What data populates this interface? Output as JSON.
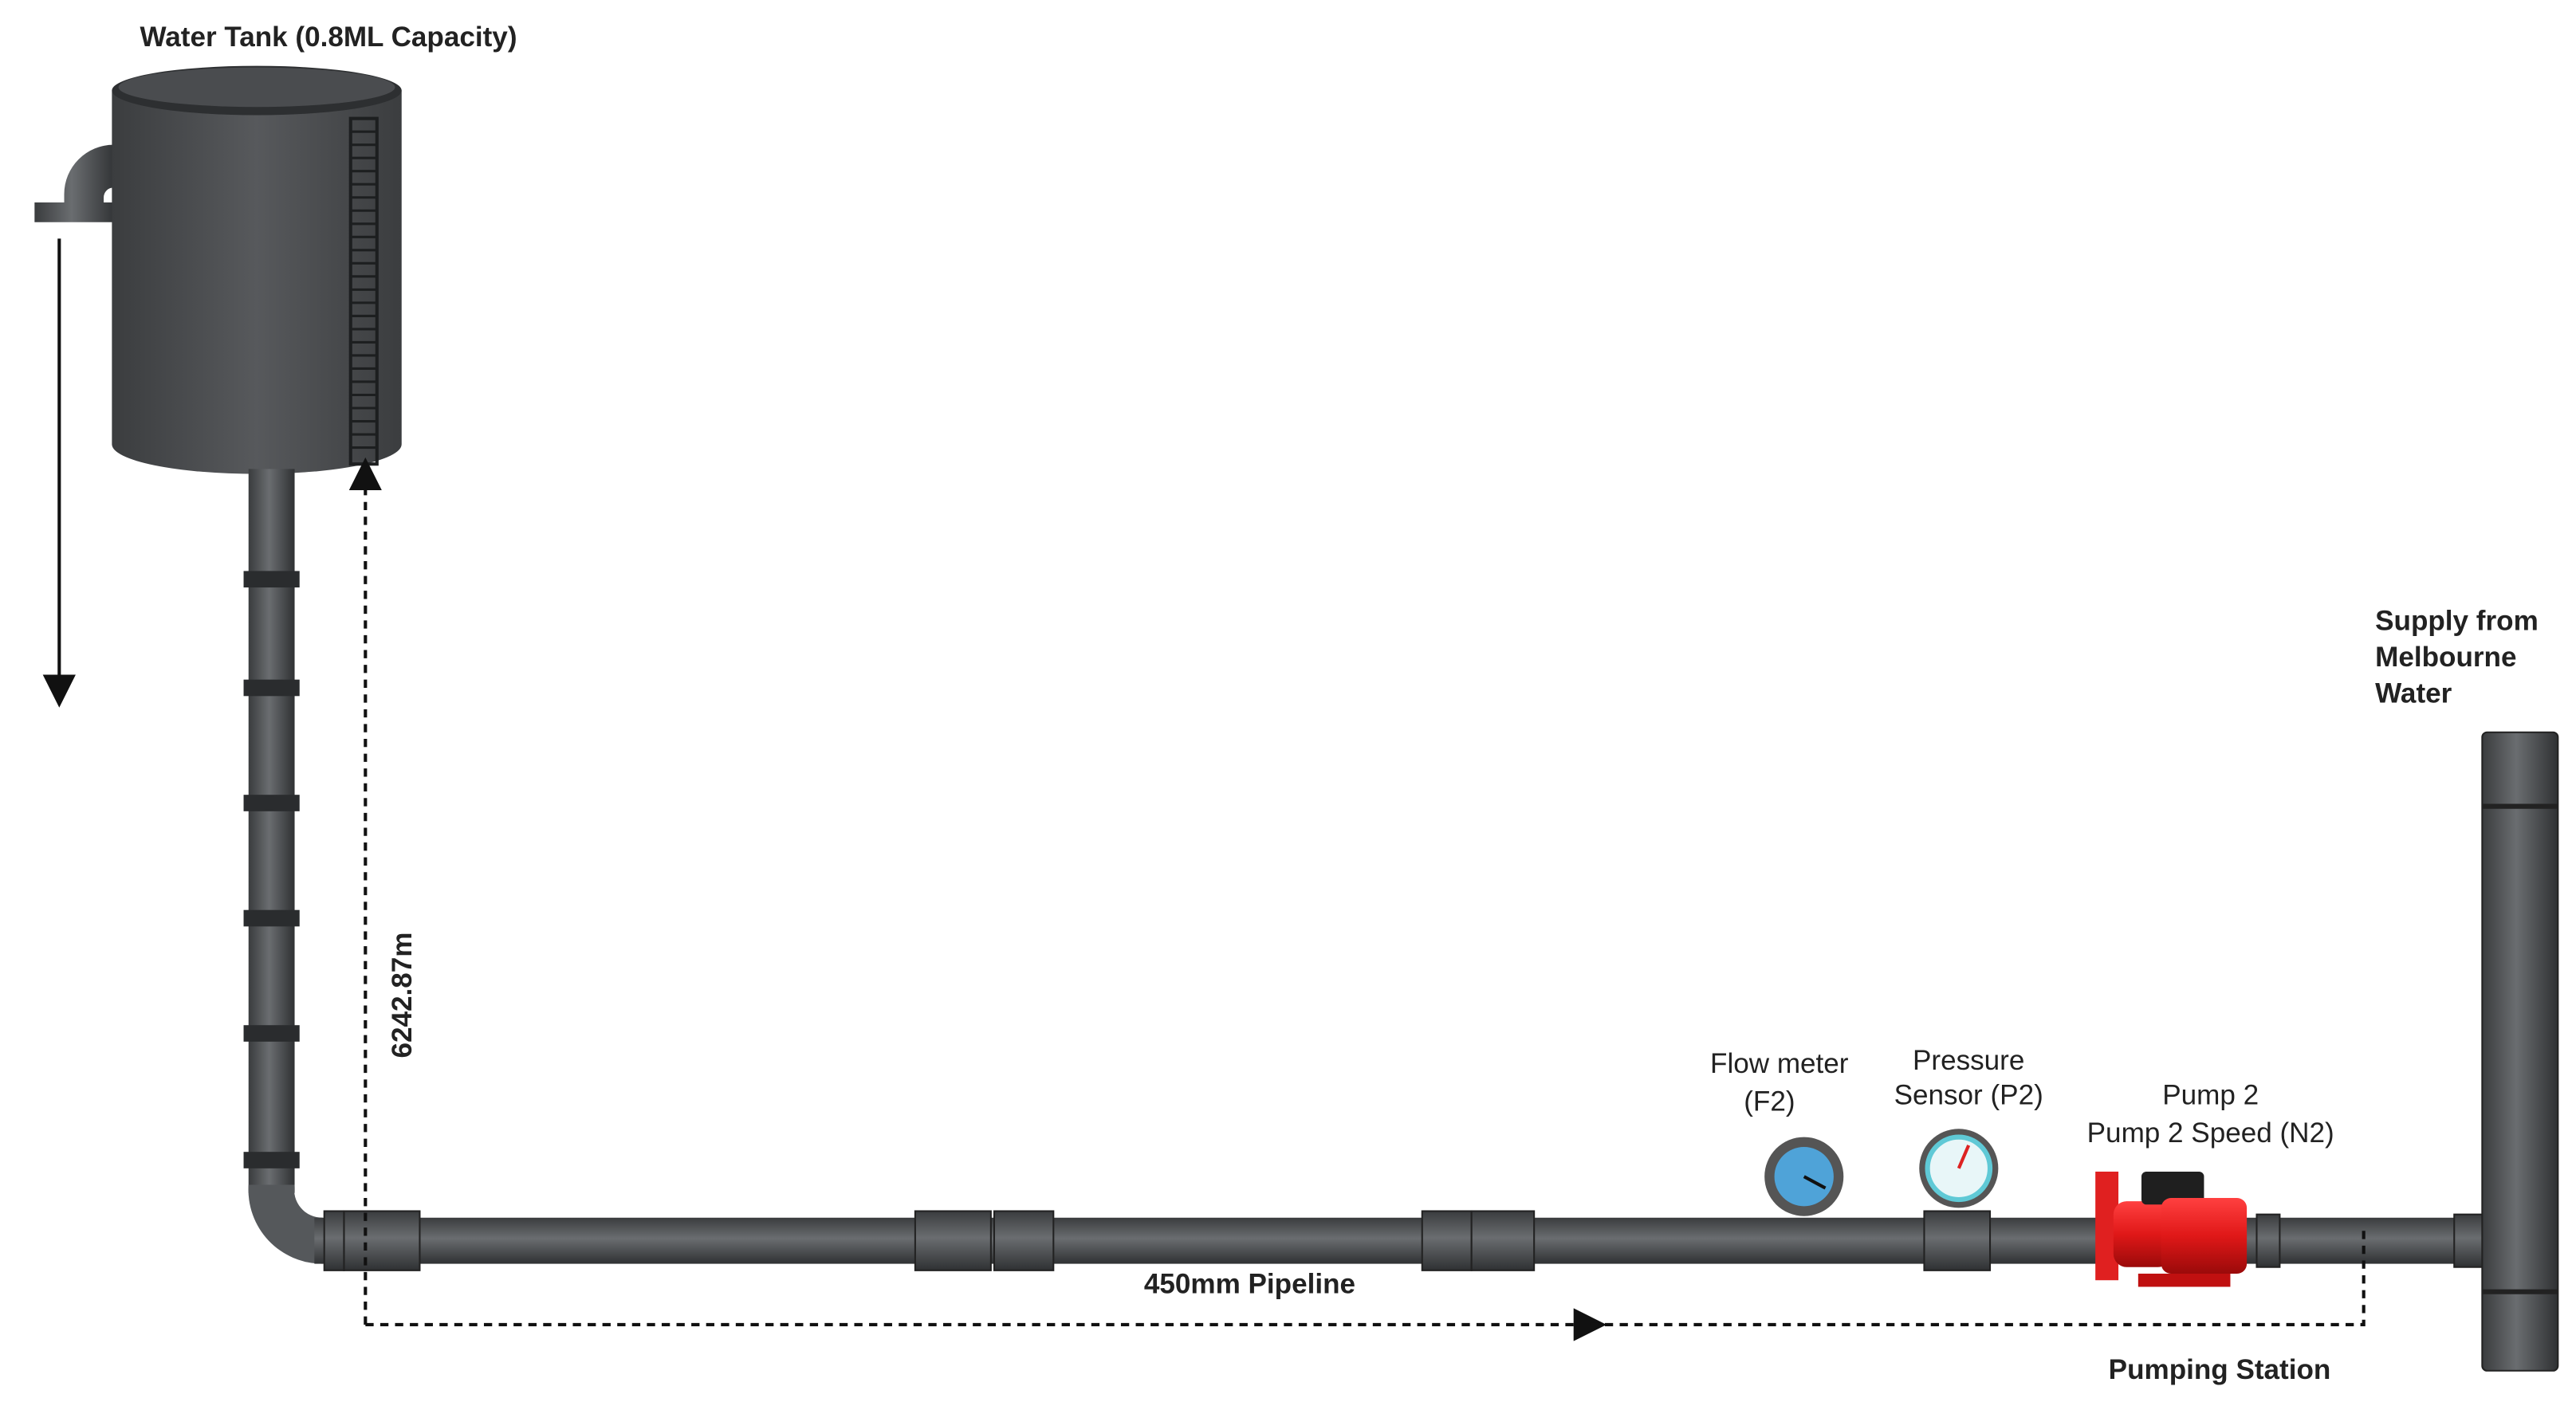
{
  "tank": {
    "label": "Water Tank (0.8ML Capacity)"
  },
  "vertical_distance": {
    "label": "6242.87m"
  },
  "pipeline": {
    "label": "450mm Pipeline"
  },
  "instruments": [
    {
      "lines": [
        "Flow meter",
        "(F2)"
      ]
    },
    {
      "lines": [
        "Pressure",
        "Sensor (P2)"
      ]
    },
    {
      "lines": [
        "Pump 2",
        "Pump 2 Speed (N2)"
      ]
    }
  ],
  "supply": {
    "lines": [
      "Supply from",
      "Melbourne",
      "Water"
    ]
  },
  "pumping_station": {
    "label": "Pumping Station"
  }
}
